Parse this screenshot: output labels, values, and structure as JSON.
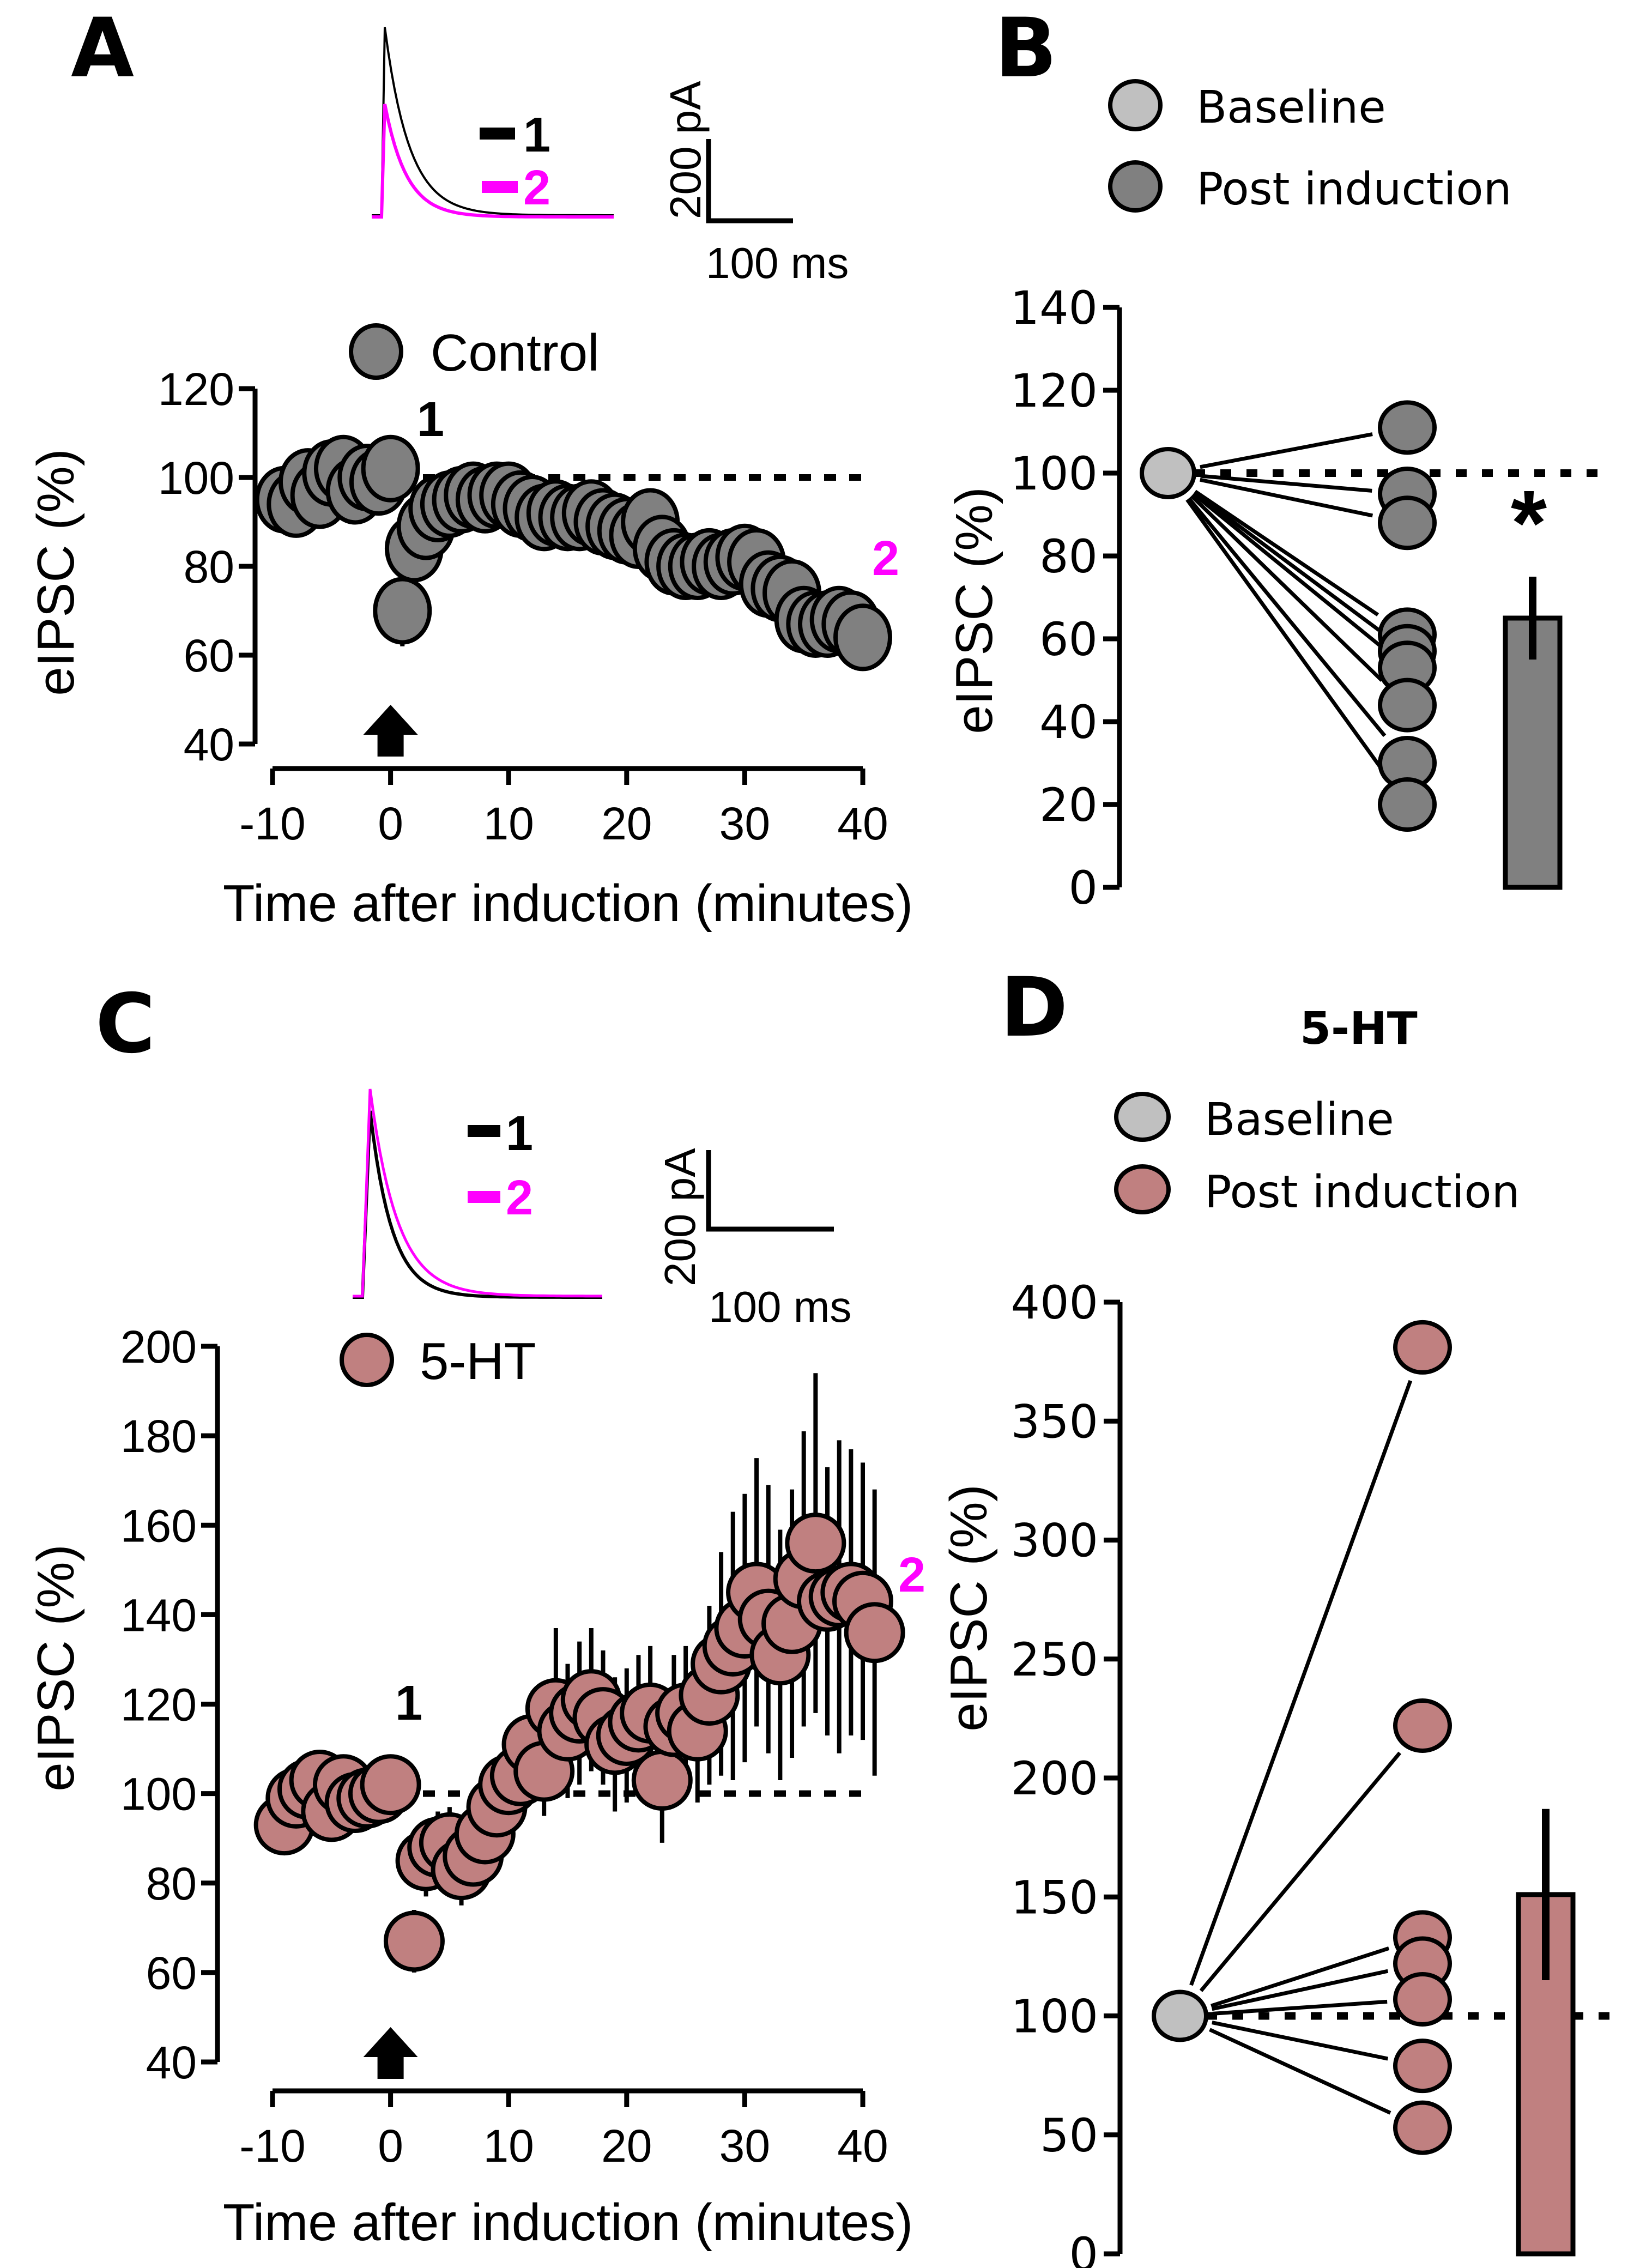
{
  "figure": {
    "panels": [
      "A",
      "B",
      "C",
      "D"
    ]
  },
  "colors": {
    "control": "#808080",
    "five_ht": "#c08080",
    "baseline": "#c0c0c0",
    "trace_1": "#000000",
    "trace_2": "#ff00ff",
    "marker_2": "#ff00ff"
  },
  "chart_data": [
    {
      "panel": "A",
      "type": "scatter",
      "legend": "Control",
      "xlabel": "Time after induction (minutes)",
      "ylabel": "eIPSC (%)",
      "xlim": [
        -10,
        40
      ],
      "ylim": [
        40,
        120
      ],
      "xticks": [
        "-10",
        "0",
        "10",
        "20",
        "30",
        "40"
      ],
      "yticks": [
        "40",
        "60",
        "80",
        "100",
        "120"
      ],
      "reference_line": 100,
      "induction_arrow_x": 0,
      "annotations": [
        {
          "label": "1",
          "x": 0,
          "y": 110
        },
        {
          "label": "2",
          "x": 43,
          "y": 78
        }
      ],
      "inset": {
        "traces": [
          "1",
          "2"
        ],
        "scale_y_label": "200 pA",
        "scale_x_label": "100 ms",
        "peak_1_rel": 1.0,
        "peak_2_rel": 0.6
      },
      "series": [
        {
          "name": "Control",
          "x": [
            -9,
            -8,
            -7,
            -6,
            -5,
            -4,
            -3,
            -2,
            -1,
            0,
            1,
            2,
            3,
            4,
            5,
            6,
            7,
            8,
            9,
            10,
            11,
            12,
            13,
            14,
            15,
            16,
            17,
            18,
            19,
            20,
            21,
            22,
            23,
            24,
            25,
            26,
            27,
            28,
            29,
            30,
            31,
            32,
            33,
            34,
            35,
            36,
            37,
            38,
            39,
            40
          ],
          "y": [
            95,
            94,
            99,
            96,
            101,
            102,
            97,
            100,
            99,
            102,
            70,
            84,
            89,
            93,
            94,
            95,
            96,
            95,
            96,
            96,
            94,
            93,
            91,
            92,
            91,
            91,
            92,
            90,
            89,
            88,
            87,
            90,
            84,
            81,
            80,
            80,
            81,
            80,
            81,
            82,
            81,
            76,
            75,
            74,
            68,
            67,
            67,
            68,
            67,
            64
          ],
          "err": [
            3,
            3,
            3,
            3,
            3,
            3,
            3,
            3,
            3,
            3,
            8,
            5,
            4,
            4,
            4,
            4,
            4,
            4,
            4,
            4,
            4,
            4,
            4,
            4,
            4,
            4,
            4,
            4,
            4,
            4,
            4,
            4,
            4,
            4,
            4,
            4,
            4,
            4,
            4,
            4,
            4,
            5,
            5,
            5,
            5,
            6,
            6,
            6,
            6,
            7
          ]
        }
      ]
    },
    {
      "panel": "B",
      "type": "scatter",
      "legend": [
        "Baseline",
        "Post induction"
      ],
      "ylabel": "eIPSC (%)",
      "ylim": [
        0,
        140
      ],
      "yticks": [
        "0",
        "20",
        "40",
        "60",
        "80",
        "100",
        "120",
        "140"
      ],
      "reference_line": 100,
      "baseline": 100,
      "post_values": [
        111,
        95,
        88,
        61,
        57,
        53,
        44,
        30,
        20
      ],
      "bar": {
        "mean": 65,
        "sem": 10
      },
      "significance": "*"
    },
    {
      "panel": "C",
      "type": "scatter",
      "legend": "5-HT",
      "xlabel": "Time after induction (minutes)",
      "ylabel": "eIPSC (%)",
      "xlim": [
        -10,
        40
      ],
      "ylim": [
        40,
        200
      ],
      "xticks": [
        "-10",
        "0",
        "10",
        "20",
        "30",
        "40"
      ],
      "yticks": [
        "40",
        "60",
        "80",
        "100",
        "120",
        "140",
        "160",
        "180",
        "200"
      ],
      "reference_line": 100,
      "induction_arrow_x": 0,
      "annotations": [
        {
          "label": "1",
          "x": 1,
          "y": 115
        },
        {
          "label": "2",
          "x": 42,
          "y": 148
        }
      ],
      "inset": {
        "traces": [
          "1",
          "2"
        ],
        "scale_y_label": "200 pA",
        "scale_x_label": "100 ms",
        "peak_1_rel": 0.9,
        "peak_2_rel": 1.0
      },
      "series": [
        {
          "name": "5-HT",
          "x": [
            -9,
            -8,
            -7,
            -6,
            -5,
            -4,
            -3,
            -2,
            -1,
            0,
            2,
            3,
            4,
            5,
            6,
            7,
            8,
            9,
            10,
            11,
            12,
            13,
            14,
            15,
            16,
            17,
            18,
            19,
            20,
            21,
            22,
            23,
            24,
            25,
            26,
            27,
            28,
            29,
            30,
            31,
            32,
            33,
            34,
            35,
            36,
            37,
            38,
            39,
            40,
            41
          ],
          "y": [
            93,
            99,
            101,
            103,
            96,
            102,
            98,
            99,
            100,
            102,
            67,
            85,
            88,
            89,
            83,
            86,
            91,
            97,
            102,
            104,
            111,
            105,
            119,
            114,
            118,
            121,
            117,
            111,
            113,
            116,
            118,
            103,
            115,
            118,
            114,
            122,
            129,
            133,
            137,
            145,
            139,
            131,
            138,
            148,
            156,
            143,
            144,
            145,
            143,
            136
          ],
          "err": [
            4,
            4,
            4,
            4,
            4,
            4,
            4,
            4,
            4,
            4,
            7,
            8,
            8,
            8,
            8,
            8,
            8,
            8,
            8,
            8,
            10,
            10,
            18,
            15,
            16,
            16,
            15,
            15,
            15,
            15,
            15,
            14,
            16,
            15,
            16,
            20,
            25,
            30,
            30,
            30,
            30,
            28,
            30,
            33,
            38,
            30,
            35,
            32,
            31,
            32
          ]
        }
      ]
    },
    {
      "panel": "D",
      "type": "scatter",
      "title": "5-HT",
      "legend": [
        "Baseline",
        "Post induction"
      ],
      "ylabel": "eIPSC (%)",
      "ylim": [
        0,
        400
      ],
      "yticks": [
        "0",
        "50",
        "100",
        "150",
        "200",
        "250",
        "300",
        "350",
        "400"
      ],
      "reference_line": 100,
      "baseline": 100,
      "post_values": [
        381,
        222,
        133,
        122,
        107,
        79,
        53
      ],
      "bar": {
        "mean": 151,
        "sem": 36
      }
    }
  ],
  "text": {
    "panel_a": "A",
    "panel_b": "B",
    "panel_c": "C",
    "panel_d": "D",
    "legend_control": "Control",
    "legend_5ht": "5-HT",
    "legend_baseline": "Baseline",
    "legend_post": "Post induction",
    "title_d": "5-HT",
    "trace_1": "1",
    "trace_2": "2",
    "scale_pa": "200 pA",
    "scale_ms": "100 ms",
    "ylabel": "eIPSC (%)",
    "xlabel": "Time after induction (minutes)",
    "marker_1": "1",
    "marker_2": "2",
    "significance": "*"
  }
}
